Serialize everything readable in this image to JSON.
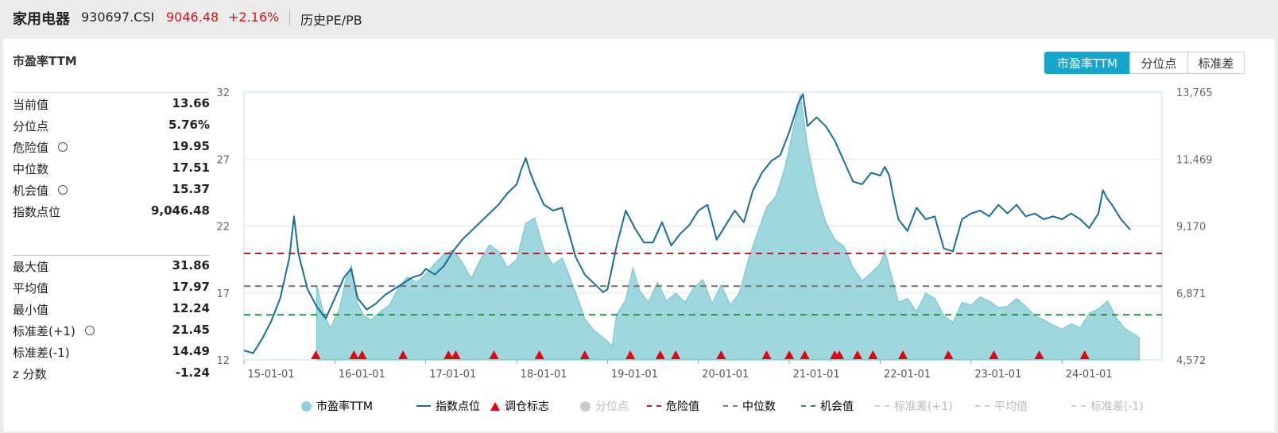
{
  "header": {
    "name": "家用电器",
    "code": "930697.CSI",
    "price": "9046.48",
    "change": "+2.16%",
    "tab": "历史PE/PB"
  },
  "panel": {
    "title": "市盈率TTM",
    "segments": [
      "市盈率TTM",
      "分位点",
      "标准差"
    ],
    "active_segment": "市盈率TTM"
  },
  "stats_top": [
    {
      "label": "当前值",
      "value": "13.66",
      "gear": false
    },
    {
      "label": "分位点",
      "value": "5.76%",
      "gear": false
    },
    {
      "label": "危险值",
      "value": "19.95",
      "gear": true
    },
    {
      "label": "中位数",
      "value": "17.51",
      "gear": false
    },
    {
      "label": "机会值",
      "value": "15.37",
      "gear": true
    },
    {
      "label": "指数点位",
      "value": "9,046.48",
      "gear": false
    }
  ],
  "stats_bottom": [
    {
      "label": "最大值",
      "value": "31.86",
      "gear": false
    },
    {
      "label": "平均值",
      "value": "17.97",
      "gear": false
    },
    {
      "label": "最小值",
      "value": "12.24",
      "gear": false
    },
    {
      "label": "标准差(+1)",
      "value": "21.45",
      "gear": true
    },
    {
      "label": "标准差(-1)",
      "value": "14.49",
      "gear": false
    },
    {
      "label": "z 分数",
      "value": "-1.24",
      "gear": false
    }
  ],
  "chart_data": {
    "type": "area",
    "x_ticks": [
      "15-01-01",
      "16-01-01",
      "17-01-01",
      "18-01-01",
      "19-01-01",
      "20-01-01",
      "21-01-01",
      "22-01-01",
      "23-01-01",
      "24-01-01"
    ],
    "y_left_ticks": [
      "12",
      "17",
      "22",
      "27",
      "32"
    ],
    "y_left_range": [
      12,
      32
    ],
    "y_right_ticks": [
      "4,572",
      "6,871",
      "9,170",
      "11,469",
      "13,765"
    ],
    "y_right_range": [
      4572,
      13765
    ],
    "x_range": [
      2015.0,
      2025.1
    ],
    "series": [
      {
        "name": "市盈率TTM",
        "type": "area",
        "color": "#8dd0d8",
        "points": [
          [
            2015.8,
            17.6
          ],
          [
            2015.88,
            15.4
          ],
          [
            2015.95,
            14.4
          ],
          [
            2016.05,
            15.8
          ],
          [
            2016.12,
            18.0
          ],
          [
            2016.18,
            19.1
          ],
          [
            2016.25,
            16.2
          ],
          [
            2016.32,
            15.3
          ],
          [
            2016.4,
            15.0
          ],
          [
            2016.5,
            15.6
          ],
          [
            2016.6,
            16.1
          ],
          [
            2016.7,
            17.4
          ],
          [
            2016.8,
            18.2
          ],
          [
            2016.9,
            17.8
          ],
          [
            2017.0,
            18.4
          ],
          [
            2017.1,
            19.2
          ],
          [
            2017.2,
            19.9
          ],
          [
            2017.3,
            20.2
          ],
          [
            2017.4,
            19.3
          ],
          [
            2017.5,
            18.1
          ],
          [
            2017.6,
            19.5
          ],
          [
            2017.7,
            20.6
          ],
          [
            2017.8,
            20.1
          ],
          [
            2017.9,
            18.9
          ],
          [
            2018.0,
            19.5
          ],
          [
            2018.1,
            22.2
          ],
          [
            2018.2,
            22.6
          ],
          [
            2018.3,
            20.2
          ],
          [
            2018.4,
            19.1
          ],
          [
            2018.5,
            19.6
          ],
          [
            2018.55,
            18.8
          ],
          [
            2018.65,
            17.0
          ],
          [
            2018.75,
            15.1
          ],
          [
            2018.85,
            14.2
          ],
          [
            2019.0,
            13.4
          ],
          [
            2019.05,
            13.0
          ],
          [
            2019.1,
            15.4
          ],
          [
            2019.2,
            16.5
          ],
          [
            2019.28,
            18.9
          ],
          [
            2019.35,
            17.2
          ],
          [
            2019.45,
            16.3
          ],
          [
            2019.55,
            17.8
          ],
          [
            2019.65,
            16.4
          ],
          [
            2019.75,
            17.0
          ],
          [
            2019.85,
            16.3
          ],
          [
            2019.95,
            17.4
          ],
          [
            2020.05,
            18.0
          ],
          [
            2020.15,
            16.2
          ],
          [
            2020.25,
            17.6
          ],
          [
            2020.35,
            16.1
          ],
          [
            2020.45,
            17.0
          ],
          [
            2020.55,
            19.5
          ],
          [
            2020.65,
            21.5
          ],
          [
            2020.75,
            23.4
          ],
          [
            2020.85,
            24.2
          ],
          [
            2020.95,
            26.3
          ],
          [
            2021.05,
            29.5
          ],
          [
            2021.12,
            31.86
          ],
          [
            2021.2,
            28.0
          ],
          [
            2021.3,
            24.6
          ],
          [
            2021.4,
            22.3
          ],
          [
            2021.5,
            21.0
          ],
          [
            2021.6,
            20.5
          ],
          [
            2021.7,
            18.9
          ],
          [
            2021.8,
            17.9
          ],
          [
            2021.9,
            18.5
          ],
          [
            2022.0,
            19.2
          ],
          [
            2022.05,
            20.2
          ],
          [
            2022.12,
            18.4
          ],
          [
            2022.2,
            16.3
          ],
          [
            2022.3,
            16.6
          ],
          [
            2022.4,
            15.6
          ],
          [
            2022.5,
            17.0
          ],
          [
            2022.6,
            16.6
          ],
          [
            2022.7,
            15.3
          ],
          [
            2022.8,
            14.8
          ],
          [
            2022.9,
            16.3
          ],
          [
            2023.0,
            16.1
          ],
          [
            2023.1,
            16.7
          ],
          [
            2023.2,
            16.4
          ],
          [
            2023.3,
            15.9
          ],
          [
            2023.4,
            16.0
          ],
          [
            2023.5,
            16.6
          ],
          [
            2023.6,
            16.0
          ],
          [
            2023.7,
            15.3
          ],
          [
            2023.8,
            15.0
          ],
          [
            2023.9,
            14.6
          ],
          [
            2024.0,
            14.3
          ],
          [
            2024.1,
            14.7
          ],
          [
            2024.2,
            14.4
          ],
          [
            2024.3,
            15.5
          ],
          [
            2024.4,
            15.8
          ],
          [
            2024.5,
            16.4
          ],
          [
            2024.55,
            15.8
          ],
          [
            2024.6,
            15.1
          ],
          [
            2024.7,
            14.3
          ],
          [
            2024.8,
            13.9
          ],
          [
            2024.85,
            13.66
          ]
        ]
      },
      {
        "name": "指数点位",
        "type": "line",
        "color": "#1a6d94",
        "points": [
          [
            2015.0,
            4900
          ],
          [
            2015.1,
            4800
          ],
          [
            2015.2,
            5300
          ],
          [
            2015.3,
            5900
          ],
          [
            2015.4,
            6700
          ],
          [
            2015.5,
            8100
          ],
          [
            2015.55,
            9500
          ],
          [
            2015.6,
            8200
          ],
          [
            2015.7,
            7000
          ],
          [
            2015.8,
            6400
          ],
          [
            2015.9,
            6000
          ],
          [
            2016.0,
            6700
          ],
          [
            2016.1,
            7400
          ],
          [
            2016.18,
            7700
          ],
          [
            2016.25,
            6700
          ],
          [
            2016.35,
            6300
          ],
          [
            2016.45,
            6500
          ],
          [
            2016.55,
            6800
          ],
          [
            2016.65,
            7000
          ],
          [
            2016.75,
            7200
          ],
          [
            2016.85,
            7400
          ],
          [
            2016.95,
            7500
          ],
          [
            2017.0,
            7700
          ],
          [
            2017.1,
            7500
          ],
          [
            2017.2,
            7800
          ],
          [
            2017.3,
            8300
          ],
          [
            2017.4,
            8700
          ],
          [
            2017.5,
            9000
          ],
          [
            2017.6,
            9300
          ],
          [
            2017.7,
            9600
          ],
          [
            2017.8,
            9900
          ],
          [
            2017.9,
            10300
          ],
          [
            2018.0,
            10600
          ],
          [
            2018.05,
            11100
          ],
          [
            2018.1,
            11500
          ],
          [
            2018.15,
            11000
          ],
          [
            2018.2,
            10600
          ],
          [
            2018.3,
            9900
          ],
          [
            2018.4,
            9700
          ],
          [
            2018.5,
            9800
          ],
          [
            2018.55,
            9200
          ],
          [
            2018.65,
            8100
          ],
          [
            2018.75,
            7500
          ],
          [
            2018.85,
            7200
          ],
          [
            2018.95,
            6900
          ],
          [
            2019.0,
            7000
          ],
          [
            2019.1,
            8500
          ],
          [
            2019.2,
            9700
          ],
          [
            2019.3,
            9100
          ],
          [
            2019.4,
            8600
          ],
          [
            2019.5,
            8600
          ],
          [
            2019.6,
            9300
          ],
          [
            2019.7,
            8500
          ],
          [
            2019.8,
            8900
          ],
          [
            2019.9,
            9200
          ],
          [
            2020.0,
            9700
          ],
          [
            2020.1,
            9900
          ],
          [
            2020.2,
            8700
          ],
          [
            2020.3,
            9200
          ],
          [
            2020.4,
            9700
          ],
          [
            2020.5,
            9300
          ],
          [
            2020.6,
            10400
          ],
          [
            2020.7,
            11000
          ],
          [
            2020.8,
            11400
          ],
          [
            2020.9,
            11600
          ],
          [
            2021.0,
            12400
          ],
          [
            2021.1,
            13400
          ],
          [
            2021.15,
            13700
          ],
          [
            2021.2,
            12600
          ],
          [
            2021.3,
            12900
          ],
          [
            2021.4,
            12600
          ],
          [
            2021.5,
            12100
          ],
          [
            2021.6,
            11400
          ],
          [
            2021.7,
            10700
          ],
          [
            2021.8,
            10600
          ],
          [
            2021.9,
            11000
          ],
          [
            2022.0,
            10900
          ],
          [
            2022.05,
            11200
          ],
          [
            2022.1,
            10900
          ],
          [
            2022.15,
            10100
          ],
          [
            2022.2,
            9400
          ],
          [
            2022.3,
            9000
          ],
          [
            2022.4,
            9800
          ],
          [
            2022.5,
            9400
          ],
          [
            2022.6,
            9500
          ],
          [
            2022.7,
            8400
          ],
          [
            2022.8,
            8300
          ],
          [
            2022.9,
            9400
          ],
          [
            2023.0,
            9600
          ],
          [
            2023.1,
            9700
          ],
          [
            2023.2,
            9500
          ],
          [
            2023.3,
            9900
          ],
          [
            2023.4,
            9600
          ],
          [
            2023.5,
            9900
          ],
          [
            2023.6,
            9500
          ],
          [
            2023.7,
            9600
          ],
          [
            2023.8,
            9400
          ],
          [
            2023.9,
            9500
          ],
          [
            2024.0,
            9400
          ],
          [
            2024.1,
            9600
          ],
          [
            2024.2,
            9400
          ],
          [
            2024.3,
            9100
          ],
          [
            2024.4,
            9600
          ],
          [
            2024.45,
            10400
          ],
          [
            2024.5,
            10100
          ],
          [
            2024.55,
            9900
          ],
          [
            2024.65,
            9400
          ],
          [
            2024.75,
            9046
          ]
        ]
      }
    ],
    "hlines": [
      {
        "name": "危险值",
        "value": 19.95,
        "color": "#d3151b",
        "style": "dashed"
      },
      {
        "name": "中位数",
        "value": 17.51,
        "color": "#777777",
        "style": "dashed"
      },
      {
        "name": "机会值",
        "value": 15.37,
        "color": "#1b9a3f",
        "style": "dashed"
      }
    ],
    "rebalance_markers": {
      "name": "调仓标志",
      "color": "#e60012",
      "x": [
        2015.79,
        2016.21,
        2016.3,
        2016.75,
        2017.25,
        2017.33,
        2017.75,
        2018.25,
        2018.75,
        2019.25,
        2019.58,
        2019.75,
        2020.25,
        2020.75,
        2021.0,
        2021.17,
        2021.5,
        2021.55,
        2021.75,
        2021.92,
        2022.25,
        2022.75,
        2023.25,
        2023.75,
        2024.25
      ]
    },
    "legend": [
      {
        "name": "市盈率TTM",
        "marker": "circle",
        "color": "#8dd0d8",
        "active": true
      },
      {
        "name": "指数点位",
        "marker": "line",
        "color": "#1a6d94",
        "active": true
      },
      {
        "name": "调仓标志",
        "marker": "triangle",
        "color": "#e60012",
        "active": true
      },
      {
        "name": "分位点",
        "marker": "circle",
        "color": "#cccccc",
        "active": false
      },
      {
        "name": "危险值",
        "marker": "dash",
        "color": "#d3151b",
        "active": true
      },
      {
        "name": "中位数",
        "marker": "dash",
        "color": "#777777",
        "active": true
      },
      {
        "name": "机会值",
        "marker": "dash",
        "color": "#1b9a3f",
        "active": true
      },
      {
        "name": "标准差(+1)",
        "marker": "dash",
        "color": "#cccccc",
        "active": false
      },
      {
        "name": "平均值",
        "marker": "dash",
        "color": "#cccccc",
        "active": false
      },
      {
        "name": "标准差(-1)",
        "marker": "dash",
        "color": "#cccccc",
        "active": false
      }
    ]
  }
}
